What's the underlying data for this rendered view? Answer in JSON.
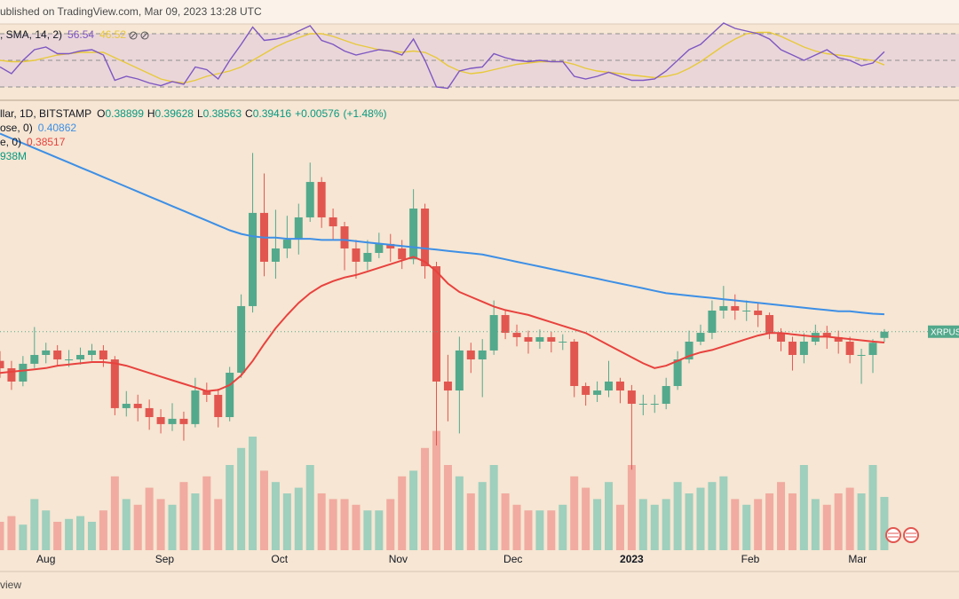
{
  "header": {
    "text": "ublished on TradingView.com, Mar 09, 2023 13:28 UTC"
  },
  "footer": {
    "text": "view"
  },
  "chart_data": [
    {
      "type": "candlestick",
      "title": "llar, 1D, BITSTAMP",
      "legend": {
        "ohlc_prefixes": [
          "O",
          "H",
          "L",
          "C"
        ],
        "change": "+0.00576",
        "change_pct": "(+1.48%)",
        "volume": "938M"
      },
      "x": [
        -12,
        -9,
        -6,
        -3,
        0,
        3,
        6,
        9,
        12,
        15,
        18,
        21,
        24,
        27,
        30,
        33,
        36,
        39,
        42,
        45,
        48,
        51,
        54,
        57,
        60,
        63,
        66,
        69,
        72,
        75,
        78,
        81,
        84,
        87,
        90,
        93,
        96,
        99,
        102,
        105,
        108,
        111,
        114,
        117,
        120,
        123,
        126,
        129,
        132,
        135,
        138,
        141,
        144,
        147,
        150,
        153,
        156,
        159,
        162,
        165,
        168,
        171,
        174,
        177,
        180,
        183,
        186,
        189,
        192,
        195,
        198,
        201,
        204,
        207,
        210,
        213,
        216,
        219
      ],
      "xlim": [
        -12,
        238.5
      ],
      "xticks": [
        {
          "value": 0,
          "label": "Aug"
        },
        {
          "value": 31,
          "label": "Sep"
        },
        {
          "value": 61,
          "label": "Oct"
        },
        {
          "value": 92,
          "label": "Nov"
        },
        {
          "value": 122,
          "label": "Dec"
        },
        {
          "value": 153,
          "label": "2023"
        },
        {
          "value": 184,
          "label": "Feb"
        },
        {
          "value": 212,
          "label": "Mar"
        }
      ],
      "ylim": [
        0.2134,
        0.5863
      ],
      "series": [
        {
          "name": "XRPUS",
          "up_color": "#53a98c",
          "down_color": "#e25650",
          "open": [
            0.37,
            0.3639,
            0.3529,
            0.3676,
            0.3749,
            0.3786,
            0.3712,
            0.3712,
            0.3749,
            0.3786,
            0.3712,
            0.3309,
            0.3345,
            0.3309,
            0.3235,
            0.3177,
            0.3221,
            0.3177,
            0.3455,
            0.3419,
            0.3235,
            0.3602,
            0.4153,
            0.4924,
            0.452,
            0.463,
            0.4703,
            0.4887,
            0.518,
            0.4887,
            0.4813,
            0.463,
            0.452,
            0.4593,
            0.4667,
            0.463,
            0.454,
            0.496,
            0.4483,
            0.3529,
            0.3455,
            0.3786,
            0.3712,
            0.3786,
            0.4079,
            0.3932,
            0.3896,
            0.3859,
            0.3896,
            0.3859,
            0.3859,
            0.3492,
            0.3419,
            0.3455,
            0.3529,
            0.3455,
            0.3345,
            0.3345,
            0.3345,
            0.3492,
            0.3712,
            0.3859,
            0.3932,
            0.4116,
            0.4153,
            0.4116,
            0.4116,
            0.4079,
            0.3932,
            0.3859,
            0.3749,
            0.3859,
            0.3932,
            0.3896,
            0.3859,
            0.3749,
            0.3749,
            0.38899
          ],
          "high": [
            0.378,
            0.37,
            0.374,
            0.398,
            0.385,
            0.383,
            0.379,
            0.381,
            0.384,
            0.383,
            0.374,
            0.345,
            0.342,
            0.338,
            0.33,
            0.335,
            0.328,
            0.356,
            0.352,
            0.347,
            0.365,
            0.425,
            0.542,
            0.525,
            0.495,
            0.49,
            0.5,
            0.534,
            0.522,
            0.496,
            0.485,
            0.47,
            0.47,
            0.476,
            0.475,
            0.47,
            0.512,
            0.5,
            0.452,
            0.375,
            0.39,
            0.385,
            0.388,
            0.42,
            0.412,
            0.4,
            0.395,
            0.396,
            0.394,
            0.392,
            0.388,
            0.352,
            0.353,
            0.37,
            0.356,
            0.35,
            0.342,
            0.342,
            0.356,
            0.378,
            0.395,
            0.4,
            0.42,
            0.432,
            0.425,
            0.42,
            0.418,
            0.41,
            0.397,
            0.39,
            0.393,
            0.4,
            0.399,
            0.395,
            0.39,
            0.38,
            0.388,
            0.39628
          ],
          "low": [
            0.356,
            0.346,
            0.349,
            0.364,
            0.368,
            0.366,
            0.365,
            0.367,
            0.37,
            0.365,
            0.325,
            0.324,
            0.32,
            0.313,
            0.31,
            0.312,
            0.304,
            0.315,
            0.336,
            0.315,
            0.32,
            0.356,
            0.41,
            0.44,
            0.438,
            0.455,
            0.458,
            0.485,
            0.48,
            0.47,
            0.445,
            0.438,
            0.445,
            0.455,
            0.452,
            0.446,
            0.45,
            0.438,
            0.3,
            0.32,
            0.31,
            0.36,
            0.34,
            0.375,
            0.388,
            0.382,
            0.376,
            0.38,
            0.377,
            0.379,
            0.34,
            0.333,
            0.336,
            0.34,
            0.335,
            0.28,
            0.325,
            0.327,
            0.33,
            0.346,
            0.368,
            0.383,
            0.388,
            0.405,
            0.404,
            0.403,
            0.398,
            0.388,
            0.378,
            0.362,
            0.368,
            0.383,
            0.38,
            0.376,
            0.368,
            0.351,
            0.36,
            0.38563
          ],
          "close": [
            0.3639,
            0.3529,
            0.3676,
            0.3749,
            0.3786,
            0.3712,
            0.3712,
            0.3749,
            0.3786,
            0.3712,
            0.3309,
            0.3345,
            0.3309,
            0.3235,
            0.3177,
            0.3221,
            0.3177,
            0.3455,
            0.3419,
            0.3235,
            0.3602,
            0.4153,
            0.4924,
            0.452,
            0.463,
            0.4703,
            0.4887,
            0.518,
            0.4887,
            0.4813,
            0.463,
            0.452,
            0.4593,
            0.4667,
            0.463,
            0.454,
            0.496,
            0.4483,
            0.3529,
            0.3455,
            0.3786,
            0.3712,
            0.3786,
            0.4079,
            0.3932,
            0.3896,
            0.3859,
            0.3896,
            0.3859,
            0.3859,
            0.3492,
            0.3419,
            0.3455,
            0.3529,
            0.3455,
            0.3345,
            0.3345,
            0.3345,
            0.3492,
            0.3712,
            0.3859,
            0.3932,
            0.4116,
            0.4153,
            0.4116,
            0.4116,
            0.4079,
            0.3932,
            0.3859,
            0.3749,
            0.3859,
            0.3932,
            0.3896,
            0.3859,
            0.3749,
            0.3749,
            0.385,
            0.39416
          ]
        }
      ],
      "lines": [
        {
          "name": "ose, 0)",
          "color": "#3d8fe6",
          "values": [
            0.558,
            0.554,
            0.55,
            0.546,
            0.542,
            0.538,
            0.534,
            0.53,
            0.526,
            0.522,
            0.518,
            0.514,
            0.51,
            0.506,
            0.502,
            0.498,
            0.494,
            0.49,
            0.486,
            0.482,
            0.478,
            0.475,
            0.473,
            0.472,
            0.472,
            0.471,
            0.471,
            0.471,
            0.47,
            0.47,
            0.47,
            0.469,
            0.468,
            0.467,
            0.466,
            0.465,
            0.464,
            0.463,
            0.462,
            0.461,
            0.46,
            0.459,
            0.458,
            0.456,
            0.454,
            0.452,
            0.45,
            0.448,
            0.446,
            0.444,
            0.442,
            0.44,
            0.438,
            0.436,
            0.434,
            0.432,
            0.43,
            0.428,
            0.426,
            0.425,
            0.424,
            0.423,
            0.422,
            0.421,
            0.42,
            0.419,
            0.418,
            0.417,
            0.416,
            0.415,
            0.414,
            0.413,
            0.412,
            0.411,
            0.411,
            0.41,
            0.409,
            0.40862
          ]
        },
        {
          "name": "e, 0)",
          "color": "#e8423e",
          "values": [
            0.36,
            0.361,
            0.362,
            0.363,
            0.364,
            0.366,
            0.367,
            0.368,
            0.369,
            0.369,
            0.368,
            0.366,
            0.363,
            0.36,
            0.357,
            0.354,
            0.351,
            0.348,
            0.345,
            0.346,
            0.35,
            0.358,
            0.37,
            0.384,
            0.397,
            0.408,
            0.418,
            0.426,
            0.432,
            0.436,
            0.439,
            0.441,
            0.444,
            0.447,
            0.45,
            0.453,
            0.456,
            0.452,
            0.444,
            0.434,
            0.427,
            0.423,
            0.419,
            0.415,
            0.412,
            0.41,
            0.408,
            0.405,
            0.402,
            0.399,
            0.396,
            0.393,
            0.388,
            0.383,
            0.378,
            0.373,
            0.368,
            0.364,
            0.366,
            0.37,
            0.374,
            0.377,
            0.379,
            0.382,
            0.385,
            0.388,
            0.391,
            0.393,
            0.393,
            0.392,
            0.391,
            0.39,
            0.39,
            0.389,
            0.388,
            0.387,
            0.386,
            0.38517
          ]
        }
      ]
    },
    {
      "type": "bar",
      "ylim": [
        0,
        2500
      ],
      "up_color": "#8fcab9",
      "down_color": "#f0a097",
      "values": [
        500,
        600,
        450,
        900,
        700,
        500,
        550,
        600,
        500,
        700,
        1300,
        900,
        800,
        1100,
        900,
        800,
        1200,
        1000,
        1300,
        900,
        1500,
        1800,
        2000,
        1400,
        1200,
        1000,
        1100,
        1500,
        1000,
        900,
        900,
        800,
        700,
        700,
        900,
        1300,
        1400,
        1800,
        2100,
        1500,
        1300,
        1000,
        1200,
        1500,
        1000,
        800,
        700,
        700,
        700,
        800,
        1300,
        1100,
        900,
        1200,
        800,
        1500,
        900,
        800,
        900,
        1200,
        1000,
        1100,
        1200,
        1300,
        900,
        800,
        900,
        1000,
        1200,
        1000,
        1500,
        900,
        800,
        1000,
        1100,
        1000,
        1500,
        938
      ]
    },
    {
      "type": "line",
      "title": ", SMA, 14, 2)",
      "ylim": [
        20,
        80
      ],
      "levels": [
        30,
        50,
        70
      ],
      "band_color": "#ead6d9",
      "series": [
        {
          "color": "#7e57c2",
          "values": [
            45,
            40,
            50,
            58,
            60,
            55,
            55,
            57,
            58,
            54,
            35,
            38,
            36,
            33,
            31,
            34,
            32,
            45,
            43,
            36,
            50,
            62,
            75,
            65,
            66,
            68,
            72,
            76,
            65,
            62,
            57,
            54,
            56,
            58,
            57,
            54,
            66,
            50,
            30,
            29,
            42,
            44,
            45,
            55,
            52,
            50,
            49,
            50,
            49,
            49,
            38,
            36,
            38,
            41,
            38,
            35,
            35,
            36,
            42,
            50,
            58,
            62,
            70,
            78,
            74,
            72,
            70,
            66,
            58,
            54,
            50,
            54,
            58,
            52,
            50,
            46,
            48,
            56.54
          ]
        },
        {
          "color": "#e8c93a",
          "values": [
            50,
            49,
            49,
            50,
            52,
            54,
            55,
            56,
            56,
            56,
            52,
            48,
            44,
            40,
            36,
            34,
            33,
            35,
            38,
            40,
            42,
            45,
            50,
            55,
            60,
            64,
            67,
            70,
            70,
            68,
            65,
            62,
            60,
            58,
            57,
            56,
            57,
            56,
            52,
            46,
            42,
            40,
            41,
            43,
            45,
            47,
            48,
            49,
            49,
            49,
            47,
            44,
            42,
            41,
            40,
            39,
            38,
            37,
            38,
            40,
            44,
            49,
            55,
            61,
            66,
            70,
            71,
            71,
            68,
            64,
            60,
            57,
            55,
            54,
            53,
            51,
            50,
            46.52
          ]
        }
      ]
    }
  ]
}
